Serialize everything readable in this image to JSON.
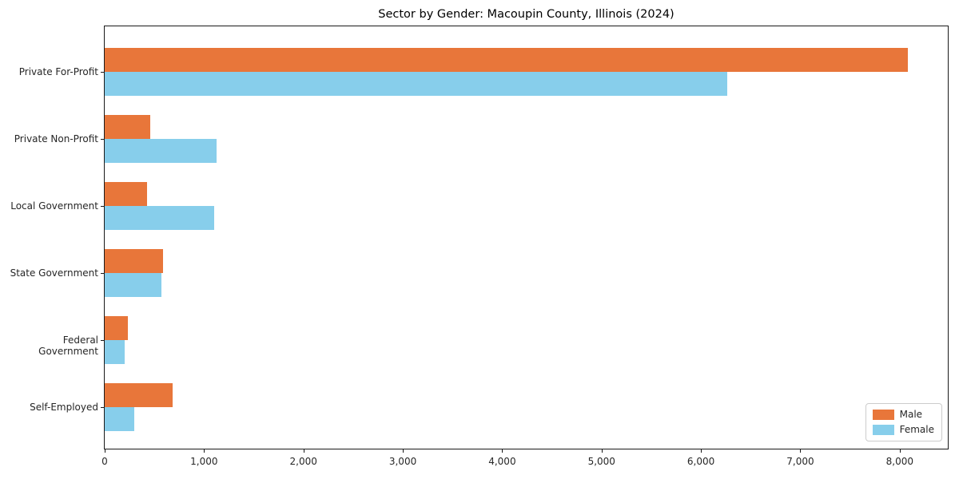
{
  "title": "Sector by Gender: Macoupin County, Illinois (2024)",
  "chart_data": {
    "type": "bar",
    "orientation": "horizontal",
    "title": "Sector by Gender: Macoupin County, Illinois (2024)",
    "categories": [
      "Private For-Profit",
      "Private Non-Profit",
      "Local Government",
      "State Government",
      "Federal Government",
      "Self-Employed"
    ],
    "series": [
      {
        "name": "Male",
        "color": "#e8763a",
        "values": [
          8080,
          455,
          430,
          585,
          230,
          685
        ]
      },
      {
        "name": "Female",
        "color": "#87ceeb",
        "values": [
          6265,
          1125,
          1100,
          570,
          200,
          295
        ]
      }
    ],
    "xlabel": "",
    "ylabel": "",
    "xlim": [
      0,
      8500
    ],
    "x_ticks": [
      0,
      1000,
      2000,
      3000,
      4000,
      5000,
      6000,
      7000,
      8000
    ],
    "x_tick_labels": [
      "0",
      "1,000",
      "2,000",
      "3,000",
      "4,000",
      "5,000",
      "6,000",
      "7,000",
      "8,000"
    ],
    "grid": false,
    "legend_position": "lower right",
    "spine_color": "#1a1a1a",
    "background_color": "#ffffff"
  }
}
